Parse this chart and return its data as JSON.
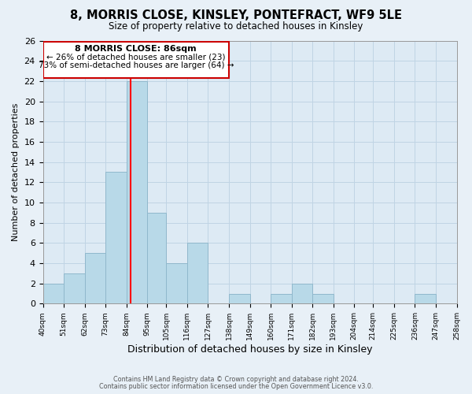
{
  "title": "8, MORRIS CLOSE, KINSLEY, PONTEFRACT, WF9 5LE",
  "subtitle": "Size of property relative to detached houses in Kinsley",
  "xlabel": "Distribution of detached houses by size in Kinsley",
  "ylabel": "Number of detached properties",
  "bar_edges": [
    40,
    51,
    62,
    73,
    84,
    95,
    105,
    116,
    127,
    138,
    149,
    160,
    171,
    182,
    193,
    204,
    214,
    225,
    236,
    247,
    258
  ],
  "bar_heights": [
    2,
    3,
    5,
    13,
    22,
    9,
    4,
    6,
    0,
    1,
    0,
    1,
    2,
    1,
    0,
    0,
    0,
    0,
    1,
    0
  ],
  "bar_color": "#b8d9e8",
  "bar_edge_color": "#90b8cc",
  "vline_x": 86,
  "vline_color": "red",
  "ylim": [
    0,
    26
  ],
  "yticks": [
    0,
    2,
    4,
    6,
    8,
    10,
    12,
    14,
    16,
    18,
    20,
    22,
    24,
    26
  ],
  "tick_labels": [
    "40sqm",
    "51sqm",
    "62sqm",
    "73sqm",
    "84sqm",
    "95sqm",
    "105sqm",
    "116sqm",
    "127sqm",
    "138sqm",
    "149sqm",
    "160sqm",
    "171sqm",
    "182sqm",
    "193sqm",
    "204sqm",
    "214sqm",
    "225sqm",
    "236sqm",
    "247sqm",
    "258sqm"
  ],
  "annotation_title": "8 MORRIS CLOSE: 86sqm",
  "annotation_line1": "← 26% of detached houses are smaller (23)",
  "annotation_line2": "73% of semi-detached houses are larger (64) →",
  "footer1": "Contains HM Land Registry data © Crown copyright and database right 2024.",
  "footer2": "Contains public sector information licensed under the Open Government Licence v3.0.",
  "bg_color": "#e8f0f7",
  "plot_bg_color": "#ddeaf4",
  "grid_color": "#c0d4e4"
}
